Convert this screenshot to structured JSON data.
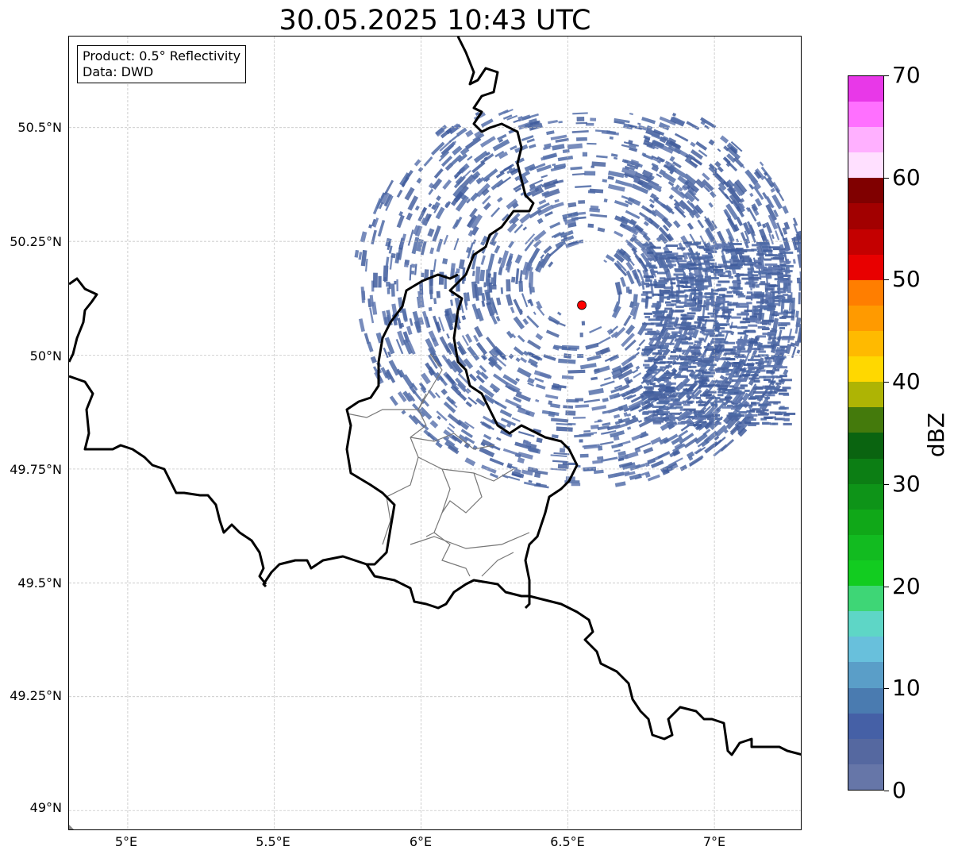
{
  "title": "30.05.2025 10:43 UTC",
  "info_box": {
    "product": "Product: 0.5° Reflectivity",
    "source": "Data: DWD"
  },
  "axes": {
    "x_ticks": [
      "5°E",
      "5.5°E",
      "6°E",
      "6.5°E",
      "7°E"
    ],
    "y_ticks": [
      "50.5°N",
      "50.25°N",
      "50°N",
      "49.75°N",
      "49.5°N",
      "49.25°N",
      "49°N"
    ]
  },
  "colorbar": {
    "label": "dBZ",
    "range": [
      0,
      70
    ],
    "ticks": [
      "0",
      "10",
      "20",
      "30",
      "40",
      "50",
      "60",
      "70"
    ],
    "colors": [
      "#6676a8",
      "#5568a0",
      "#4560a6",
      "#4a7bb0",
      "#5a9ec8",
      "#68c0dc",
      "#5ed6c6",
      "#3ed676",
      "#12cc20",
      "#12bb20",
      "#10a818",
      "#0e9418",
      "#0c7e14",
      "#0a6410",
      "#447a0c",
      "#aeb404",
      "#ffd800",
      "#ffba00",
      "#ff9a00",
      "#ff7e00",
      "#e80000",
      "#c40000",
      "#a20000",
      "#800000",
      "#ffe0ff",
      "#ffb0ff",
      "#ff70ff",
      "#e838e8"
    ]
  },
  "radar_site": {
    "lon": 6.548,
    "lat": 50.11,
    "color": "#ff0000"
  }
}
